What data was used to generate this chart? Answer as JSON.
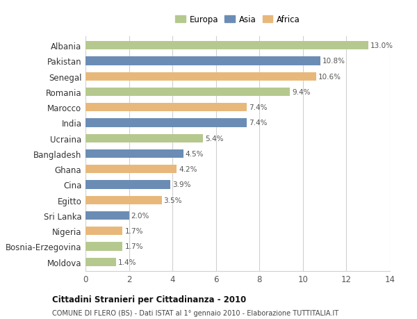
{
  "countries": [
    "Albania",
    "Pakistan",
    "Senegal",
    "Romania",
    "Marocco",
    "India",
    "Ucraina",
    "Bangladesh",
    "Ghana",
    "Cina",
    "Egitto",
    "Sri Lanka",
    "Nigeria",
    "Bosnia-Erzegovina",
    "Moldova"
  ],
  "values": [
    13.0,
    10.8,
    10.6,
    9.4,
    7.4,
    7.4,
    5.4,
    4.5,
    4.2,
    3.9,
    3.5,
    2.0,
    1.7,
    1.7,
    1.4
  ],
  "continents": [
    "Europa",
    "Asia",
    "Africa",
    "Europa",
    "Africa",
    "Asia",
    "Europa",
    "Asia",
    "Africa",
    "Asia",
    "Africa",
    "Asia",
    "Africa",
    "Europa",
    "Europa"
  ],
  "colors": {
    "Europa": "#b5c98e",
    "Asia": "#6b8db5",
    "Africa": "#e8b87a"
  },
  "legend_labels": [
    "Europa",
    "Asia",
    "Africa"
  ],
  "title": "Cittadini Stranieri per Cittadinanza - 2010",
  "subtitle": "COMUNE DI FLERO (BS) - Dati ISTAT al 1° gennaio 2010 - Elaborazione TUTTITALIA.IT",
  "xlim": [
    0,
    14
  ],
  "xticks": [
    0,
    2,
    4,
    6,
    8,
    10,
    12,
    14
  ],
  "bg_color": "#ffffff",
  "grid_color": "#d0d0d0",
  "bar_height": 0.55
}
